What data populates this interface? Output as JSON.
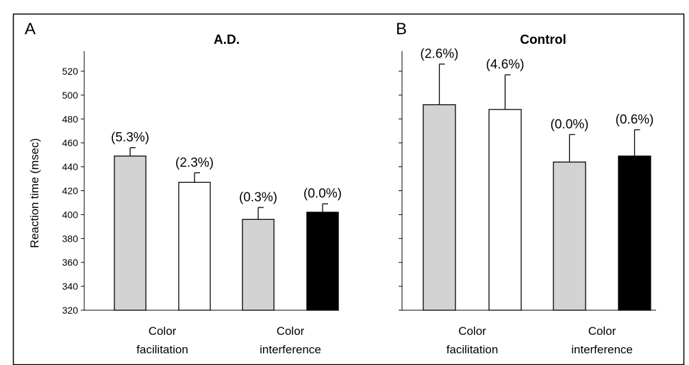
{
  "chart_data": [
    {
      "type": "bar",
      "panel_letter": "A",
      "title": "A.D.",
      "ylabel": "Reaction time (msec)",
      "ylim": [
        320,
        530
      ],
      "yticks": [
        320,
        340,
        360,
        380,
        400,
        420,
        440,
        460,
        480,
        500,
        520
      ],
      "ytick_labels_visible": true,
      "groups": [
        {
          "label_lines": [
            "Color",
            "facilitation"
          ],
          "bars": [
            0,
            1
          ]
        },
        {
          "label_lines": [
            "Color",
            "interference"
          ],
          "bars": [
            2,
            3
          ]
        }
      ],
      "bars": [
        {
          "value": 449,
          "error": 7,
          "label": "(5.3%)",
          "fill": "#d3d3d3"
        },
        {
          "value": 427,
          "error": 8,
          "label": "(2.3%)",
          "fill": "#ffffff"
        },
        {
          "value": 396,
          "error": 10,
          "label": "(0.3%)",
          "fill": "#d3d3d3"
        },
        {
          "value": 402,
          "error": 7,
          "label": "(0.0%)",
          "fill": "#000000"
        }
      ]
    },
    {
      "type": "bar",
      "panel_letter": "B",
      "title": "Control",
      "ylabel": "",
      "ylim": [
        320,
        530
      ],
      "yticks": [
        320,
        340,
        360,
        380,
        400,
        420,
        440,
        460,
        480,
        500,
        520
      ],
      "ytick_labels_visible": false,
      "groups": [
        {
          "label_lines": [
            "Color",
            "facilitation"
          ],
          "bars": [
            0,
            1
          ]
        },
        {
          "label_lines": [
            "Color",
            "interference"
          ],
          "bars": [
            2,
            3
          ]
        }
      ],
      "bars": [
        {
          "value": 492,
          "error": 34,
          "label": "(2.6%)",
          "fill": "#d3d3d3"
        },
        {
          "value": 488,
          "error": 29,
          "label": "(4.6%)",
          "fill": "#ffffff"
        },
        {
          "value": 444,
          "error": 23,
          "label": "(0.0%)",
          "fill": "#d3d3d3"
        },
        {
          "value": 449,
          "error": 22,
          "label": "(0.6%)",
          "fill": "#000000"
        }
      ]
    }
  ]
}
